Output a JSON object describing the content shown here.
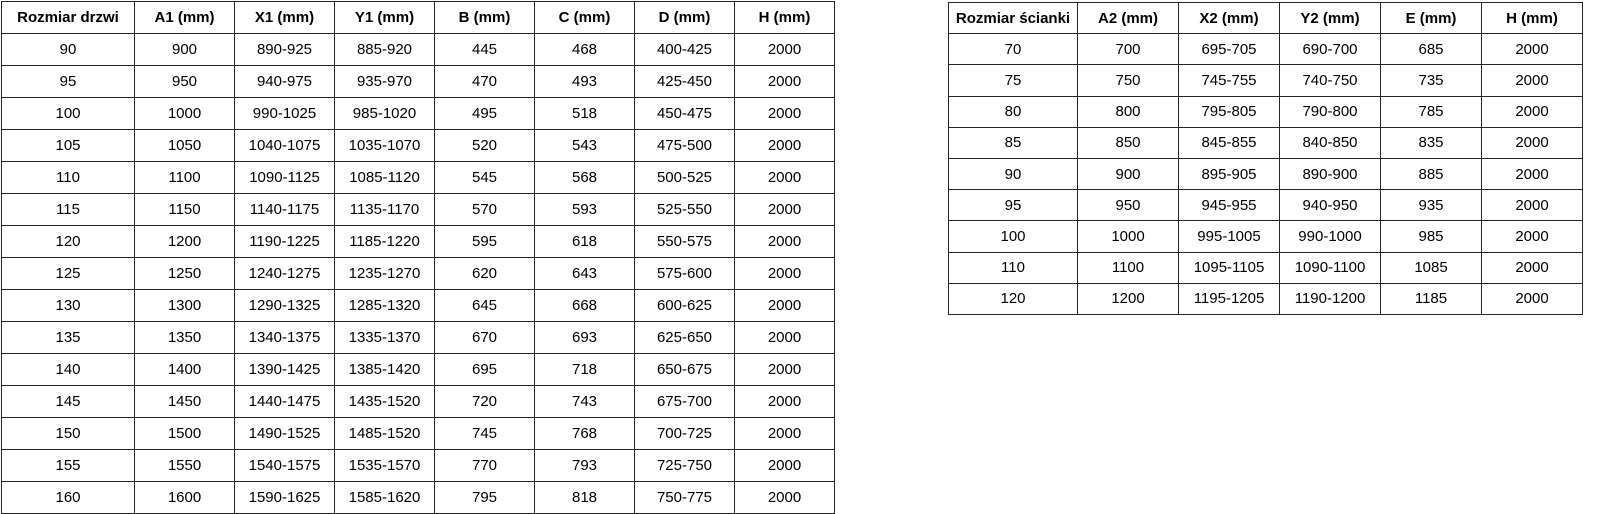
{
  "page": {
    "background_color": "#ffffff",
    "border_color": "#262626",
    "text_color": "#000000"
  },
  "left_table": {
    "title": "door-size-table",
    "headers": [
      "Rozmiar drzwi",
      "A1 (mm)",
      "X1 (mm)",
      "Y1 (mm)",
      "B (mm)",
      "C (mm)",
      "D (mm)",
      "H (mm)"
    ],
    "rows": [
      [
        "90",
        "900",
        "890-925",
        "885-920",
        "445",
        "468",
        "400-425",
        "2000"
      ],
      [
        "95",
        "950",
        "940-975",
        "935-970",
        "470",
        "493",
        "425-450",
        "2000"
      ],
      [
        "100",
        "1000",
        "990-1025",
        "985-1020",
        "495",
        "518",
        "450-475",
        "2000"
      ],
      [
        "105",
        "1050",
        "1040-1075",
        "1035-1070",
        "520",
        "543",
        "475-500",
        "2000"
      ],
      [
        "110",
        "1100",
        "1090-1125",
        "1085-1120",
        "545",
        "568",
        "500-525",
        "2000"
      ],
      [
        "115",
        "1150",
        "1140-1175",
        "1135-1170",
        "570",
        "593",
        "525-550",
        "2000"
      ],
      [
        "120",
        "1200",
        "1190-1225",
        "1185-1220",
        "595",
        "618",
        "550-575",
        "2000"
      ],
      [
        "125",
        "1250",
        "1240-1275",
        "1235-1270",
        "620",
        "643",
        "575-600",
        "2000"
      ],
      [
        "130",
        "1300",
        "1290-1325",
        "1285-1320",
        "645",
        "668",
        "600-625",
        "2000"
      ],
      [
        "135",
        "1350",
        "1340-1375",
        "1335-1370",
        "670",
        "693",
        "625-650",
        "2000"
      ],
      [
        "140",
        "1400",
        "1390-1425",
        "1385-1420",
        "695",
        "718",
        "650-675",
        "2000"
      ],
      [
        "145",
        "1450",
        "1440-1475",
        "1435-1520",
        "720",
        "743",
        "675-700",
        "2000"
      ],
      [
        "150",
        "1500",
        "1490-1525",
        "1485-1520",
        "745",
        "768",
        "700-725",
        "2000"
      ],
      [
        "155",
        "1550",
        "1540-1575",
        "1535-1570",
        "770",
        "793",
        "725-750",
        "2000"
      ],
      [
        "160",
        "1600",
        "1590-1625",
        "1585-1620",
        "795",
        "818",
        "750-775",
        "2000"
      ]
    ]
  },
  "right_table": {
    "title": "wall-panel-size-table",
    "headers": [
      "Rozmiar ścianki",
      "A2 (mm)",
      "X2 (mm)",
      "Y2 (mm)",
      "E (mm)",
      "H (mm)"
    ],
    "rows": [
      [
        "70",
        "700",
        "695-705",
        "690-700",
        "685",
        "2000"
      ],
      [
        "75",
        "750",
        "745-755",
        "740-750",
        "735",
        "2000"
      ],
      [
        "80",
        "800",
        "795-805",
        "790-800",
        "785",
        "2000"
      ],
      [
        "85",
        "850",
        "845-855",
        "840-850",
        "835",
        "2000"
      ],
      [
        "90",
        "900",
        "895-905",
        "890-900",
        "885",
        "2000"
      ],
      [
        "95",
        "950",
        "945-955",
        "940-950",
        "935",
        "2000"
      ],
      [
        "100",
        "1000",
        "995-1005",
        "990-1000",
        "985",
        "2000"
      ],
      [
        "110",
        "1100",
        "1095-1105",
        "1090-1100",
        "1085",
        "2000"
      ],
      [
        "120",
        "1200",
        "1195-1205",
        "1190-1200",
        "1185",
        "2000"
      ]
    ]
  }
}
